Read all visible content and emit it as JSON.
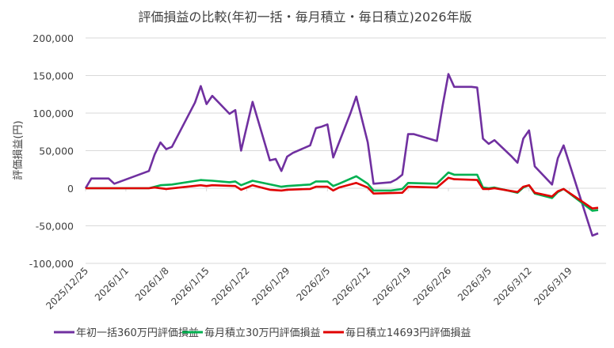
{
  "chart_data": {
    "type": "line",
    "title": "評価損益の比較(年初一括・毎月積立・毎日積立)2026年版",
    "xlabel": "",
    "ylabel": "評価損益(円)",
    "ylim": [
      -100000,
      200000
    ],
    "yticks": [
      200000,
      150000,
      100000,
      50000,
      0,
      -50000,
      -100000
    ],
    "ytick_labels": [
      "200,000",
      "150,000",
      "100,000",
      "50,000",
      "0",
      "-50,000",
      "-100,000"
    ],
    "x_unit": "days since 2025/12/25",
    "xlim": [
      0,
      89
    ],
    "xticks": [
      0,
      7,
      14,
      21,
      28,
      35,
      42,
      49,
      56,
      63,
      70,
      77,
      84
    ],
    "xtick_labels": [
      "2025/12/25",
      "2026/1/1",
      "2026/1/8",
      "2026/1/15",
      "2026/1/22",
      "2026/1/29",
      "2026/2/5",
      "2026/2/12",
      "2026/2/19",
      "2026/2/26",
      "2026/3/5",
      "2026/3/12",
      "2026/3/19"
    ],
    "grid": "horizontal",
    "legend_position": "bottom",
    "series": [
      {
        "name": "年初一括360万円評価損益",
        "color": "#7030A0",
        "points": [
          [
            0,
            0
          ],
          [
            1,
            13000
          ],
          [
            4,
            13000
          ],
          [
            5,
            6000
          ],
          [
            11,
            23000
          ],
          [
            12,
            45000
          ],
          [
            13,
            61000
          ],
          [
            14,
            52000
          ],
          [
            15,
            55000
          ],
          [
            19,
            114000
          ],
          [
            20,
            136000
          ],
          [
            21,
            112000
          ],
          [
            22,
            123000
          ],
          [
            25,
            99000
          ],
          [
            26,
            104000
          ],
          [
            27,
            50000
          ],
          [
            29,
            115000
          ],
          [
            32,
            37000
          ],
          [
            33,
            39000
          ],
          [
            34,
            23000
          ],
          [
            35,
            42000
          ],
          [
            36,
            47000
          ],
          [
            39,
            57000
          ],
          [
            40,
            80000
          ],
          [
            41,
            82000
          ],
          [
            42,
            85000
          ],
          [
            43,
            41000
          ],
          [
            46,
            100000
          ],
          [
            47,
            122000
          ],
          [
            49,
            61000
          ],
          [
            50,
            6000
          ],
          [
            53,
            8000
          ],
          [
            54,
            12000
          ],
          [
            55,
            18000
          ],
          [
            56,
            72000
          ],
          [
            57,
            72000
          ],
          [
            61,
            63000
          ],
          [
            62,
            110000
          ],
          [
            63,
            152000
          ],
          [
            64,
            135000
          ],
          [
            67,
            135000
          ],
          [
            68,
            134000
          ],
          [
            69,
            66000
          ],
          [
            70,
            59000
          ],
          [
            71,
            64000
          ],
          [
            74,
            42000
          ],
          [
            75,
            34000
          ],
          [
            76,
            66000
          ],
          [
            77,
            77000
          ],
          [
            78,
            29000
          ],
          [
            81,
            5000
          ],
          [
            82,
            40000
          ],
          [
            83,
            57000
          ],
          [
            88,
            -63000
          ],
          [
            89,
            -60000
          ]
        ]
      },
      {
        "name": "毎月積立30万円評価損益",
        "color": "#00B050",
        "points": [
          [
            0,
            0
          ],
          [
            11,
            0
          ],
          [
            13,
            4000
          ],
          [
            15,
            5000
          ],
          [
            20,
            11000
          ],
          [
            22,
            10000
          ],
          [
            25,
            8000
          ],
          [
            26,
            9000
          ],
          [
            27,
            4000
          ],
          [
            29,
            10000
          ],
          [
            34,
            2000
          ],
          [
            35,
            3000
          ],
          [
            39,
            5000
          ],
          [
            40,
            9000
          ],
          [
            42,
            9000
          ],
          [
            43,
            3000
          ],
          [
            44,
            6000
          ],
          [
            47,
            16000
          ],
          [
            49,
            6000
          ],
          [
            50,
            -3000
          ],
          [
            53,
            -3000
          ],
          [
            55,
            -1000
          ],
          [
            56,
            7000
          ],
          [
            61,
            6000
          ],
          [
            63,
            21000
          ],
          [
            64,
            18000
          ],
          [
            68,
            18000
          ],
          [
            69,
            1000
          ],
          [
            70,
            0
          ],
          [
            71,
            1000
          ],
          [
            75,
            -6000
          ],
          [
            76,
            1000
          ],
          [
            77,
            4000
          ],
          [
            78,
            -7000
          ],
          [
            81,
            -13000
          ],
          [
            82,
            -5000
          ],
          [
            83,
            -1000
          ],
          [
            88,
            -30000
          ],
          [
            89,
            -29000
          ]
        ]
      },
      {
        "name": "毎日積立14693円評価損益",
        "color": "#E00000",
        "points": [
          [
            0,
            0
          ],
          [
            11,
            0
          ],
          [
            12,
            1000
          ],
          [
            14,
            -1000
          ],
          [
            20,
            4000
          ],
          [
            21,
            3000
          ],
          [
            22,
            4000
          ],
          [
            26,
            3000
          ],
          [
            27,
            -2000
          ],
          [
            29,
            4000
          ],
          [
            32,
            -2000
          ],
          [
            34,
            -3000
          ],
          [
            35,
            -2000
          ],
          [
            39,
            -1000
          ],
          [
            40,
            2000
          ],
          [
            42,
            2000
          ],
          [
            43,
            -3000
          ],
          [
            44,
            1000
          ],
          [
            47,
            7000
          ],
          [
            49,
            1000
          ],
          [
            50,
            -7000
          ],
          [
            55,
            -6000
          ],
          [
            56,
            2000
          ],
          [
            61,
            1000
          ],
          [
            63,
            14000
          ],
          [
            64,
            12000
          ],
          [
            68,
            11000
          ],
          [
            69,
            -1000
          ],
          [
            70,
            -1000
          ],
          [
            71,
            0
          ],
          [
            75,
            -5000
          ],
          [
            76,
            2000
          ],
          [
            77,
            4000
          ],
          [
            78,
            -6000
          ],
          [
            81,
            -11000
          ],
          [
            82,
            -4000
          ],
          [
            83,
            -1000
          ],
          [
            88,
            -27000
          ],
          [
            89,
            -26000
          ]
        ]
      }
    ]
  }
}
